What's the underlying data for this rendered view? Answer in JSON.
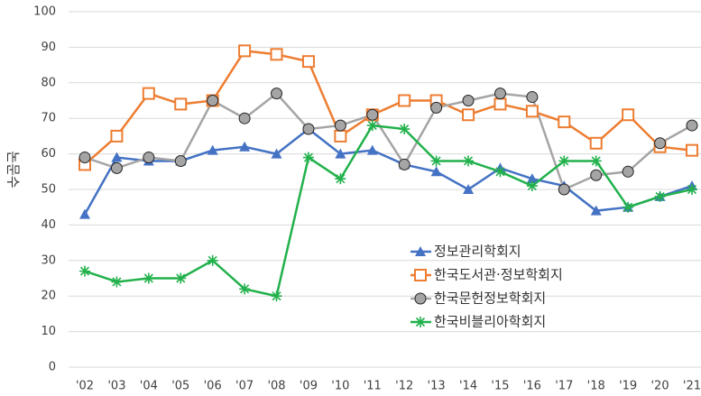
{
  "chart_data": {
    "type": "line",
    "y_label": "논문수",
    "categories": [
      "'02",
      "'03",
      "'04",
      "'05",
      "'06",
      "'07",
      "'08",
      "'09",
      "'10",
      "'11",
      "'12",
      "'13",
      "'14",
      "'15",
      "'16",
      "'17",
      "'18",
      "'19",
      "'20",
      "'21"
    ],
    "series": [
      {
        "name": "정보관리학회지",
        "color": "#4472c4",
        "marker": "triangle",
        "values": [
          43,
          59,
          58,
          58,
          61,
          62,
          60,
          67,
          60,
          61,
          57,
          55,
          50,
          56,
          53,
          51,
          44,
          45,
          48,
          51
        ]
      },
      {
        "name": "한국도서관·정보학회지",
        "color": "#ed7d31",
        "marker": "square",
        "values": [
          57,
          65,
          77,
          74,
          75,
          89,
          88,
          86,
          65,
          71,
          75,
          75,
          71,
          74,
          72,
          69,
          63,
          71,
          62,
          61
        ]
      },
      {
        "name": "한국문헌정보학회지",
        "color": "#a5a5a5",
        "marker": "circle",
        "values": [
          59,
          56,
          59,
          58,
          75,
          70,
          77,
          67,
          68,
          71,
          57,
          73,
          75,
          77,
          76,
          50,
          54,
          55,
          63,
          68
        ]
      },
      {
        "name": "한국비블리아학회지",
        "color": "#22b14c",
        "marker": "asterisk",
        "values": [
          27,
          24,
          25,
          25,
          30,
          22,
          20,
          59,
          53,
          68,
          67,
          58,
          58,
          55,
          51,
          58,
          58,
          45,
          48,
          50
        ]
      }
    ],
    "ylim": [
      0,
      100
    ],
    "yticks": [
      0,
      10,
      20,
      30,
      40,
      50,
      60,
      70,
      80,
      90,
      100
    ],
    "grid": true
  }
}
